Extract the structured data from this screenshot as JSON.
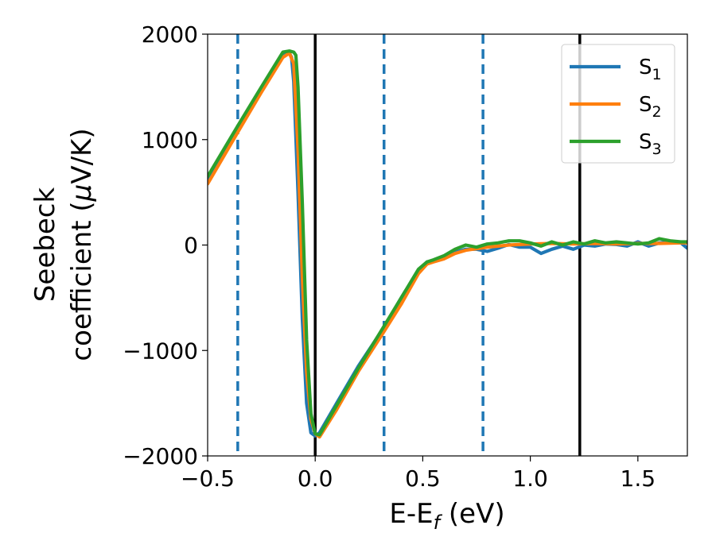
{
  "chart_data": {
    "type": "line",
    "title": "",
    "xlabel": "E-E_f (eV)",
    "xlabel_parts": [
      "E-E",
      "f",
      " (eV)"
    ],
    "ylabel": "Seebeck coefficient (μV/K)",
    "ylabel_lines": [
      "Seebeck",
      "coefficient  (μV/K)"
    ],
    "ylabel_parts": [
      "coefficient  (",
      "μ",
      "V/K)"
    ],
    "xlim": [
      -0.5,
      1.73
    ],
    "ylim": [
      -2000,
      2000
    ],
    "x_ticks": [
      -0.5,
      0.0,
      0.5,
      1.0,
      1.5
    ],
    "x_tick_labels": [
      "−0.5",
      "0.0",
      "0.5",
      "1.0",
      "1.5"
    ],
    "y_ticks": [
      -2000,
      -1000,
      0,
      1000,
      2000
    ],
    "y_tick_labels": [
      "−2000",
      "−1000",
      "0",
      "1000",
      "2000"
    ],
    "grid": false,
    "legend_position": "top-right",
    "vertical_lines": [
      {
        "x": -0.36,
        "style": "dashed",
        "color": "#1f77b4"
      },
      {
        "x": 0.0,
        "style": "solid",
        "color": "#000000"
      },
      {
        "x": 0.32,
        "style": "dashed",
        "color": "#1f77b4"
      },
      {
        "x": 0.78,
        "style": "dashed",
        "color": "#1f77b4"
      },
      {
        "x": 1.23,
        "style": "solid",
        "color": "#000000"
      }
    ],
    "series": [
      {
        "name": "S1",
        "label_main": "S",
        "label_sub": "1",
        "color": "#1f77b4",
        "x": [
          -0.5,
          -0.36,
          -0.25,
          -0.15,
          -0.12,
          -0.11,
          -0.1,
          -0.08,
          -0.06,
          -0.04,
          -0.02,
          0.0,
          0.02,
          0.1,
          0.2,
          0.32,
          0.4,
          0.48,
          0.52,
          0.55,
          0.6,
          0.65,
          0.7,
          0.75,
          0.8,
          0.85,
          0.9,
          0.95,
          1.0,
          1.05,
          1.1,
          1.15,
          1.2,
          1.25,
          1.3,
          1.35,
          1.4,
          1.45,
          1.5,
          1.55,
          1.6,
          1.65,
          1.7,
          1.73
        ],
        "y": [
          610,
          1090,
          1470,
          1800,
          1820,
          1780,
          1550,
          500,
          -700,
          -1500,
          -1780,
          -1810,
          -1780,
          -1500,
          -1150,
          -780,
          -500,
          -240,
          -160,
          -150,
          -120,
          -70,
          -40,
          -40,
          -60,
          -30,
          5,
          -20,
          -20,
          -80,
          -40,
          -10,
          -40,
          0,
          -10,
          10,
          5,
          -10,
          30,
          -10,
          20,
          30,
          20,
          -30
        ]
      },
      {
        "name": "S2",
        "label_main": "S",
        "label_sub": "2",
        "color": "#ff7f0e",
        "x": [
          -0.5,
          -0.36,
          -0.25,
          -0.15,
          -0.12,
          -0.1,
          -0.08,
          -0.06,
          -0.04,
          -0.02,
          0.0,
          0.02,
          0.1,
          0.2,
          0.32,
          0.4,
          0.48,
          0.52,
          0.55,
          0.6,
          0.65,
          0.7,
          0.8,
          0.9,
          1.0,
          1.1,
          1.2,
          1.3,
          1.4,
          1.5,
          1.6,
          1.7,
          1.73
        ],
        "y": [
          580,
          1070,
          1450,
          1780,
          1820,
          1720,
          900,
          -300,
          -1200,
          -1650,
          -1790,
          -1820,
          -1560,
          -1200,
          -820,
          -560,
          -270,
          -180,
          -160,
          -130,
          -80,
          -50,
          -20,
          0,
          10,
          15,
          10,
          15,
          10,
          15,
          15,
          20,
          20
        ]
      },
      {
        "name": "S3",
        "label_main": "S",
        "label_sub": "3",
        "color": "#2ca02c",
        "x": [
          -0.5,
          -0.36,
          -0.25,
          -0.15,
          -0.12,
          -0.1,
          -0.09,
          -0.08,
          -0.06,
          -0.04,
          -0.02,
          0.0,
          0.02,
          0.1,
          0.2,
          0.32,
          0.4,
          0.48,
          0.52,
          0.55,
          0.6,
          0.65,
          0.7,
          0.75,
          0.8,
          0.85,
          0.9,
          0.95,
          1.0,
          1.05,
          1.1,
          1.15,
          1.2,
          1.25,
          1.3,
          1.35,
          1.4,
          1.45,
          1.5,
          1.55,
          1.6,
          1.65,
          1.7,
          1.73
        ],
        "y": [
          650,
          1130,
          1500,
          1830,
          1840,
          1830,
          1800,
          1500,
          400,
          -900,
          -1600,
          -1790,
          -1800,
          -1520,
          -1170,
          -770,
          -500,
          -230,
          -160,
          -140,
          -100,
          -40,
          0,
          -20,
          10,
          20,
          40,
          40,
          20,
          -10,
          30,
          0,
          30,
          10,
          40,
          20,
          30,
          20,
          10,
          20,
          60,
          40,
          30,
          30
        ]
      }
    ]
  }
}
